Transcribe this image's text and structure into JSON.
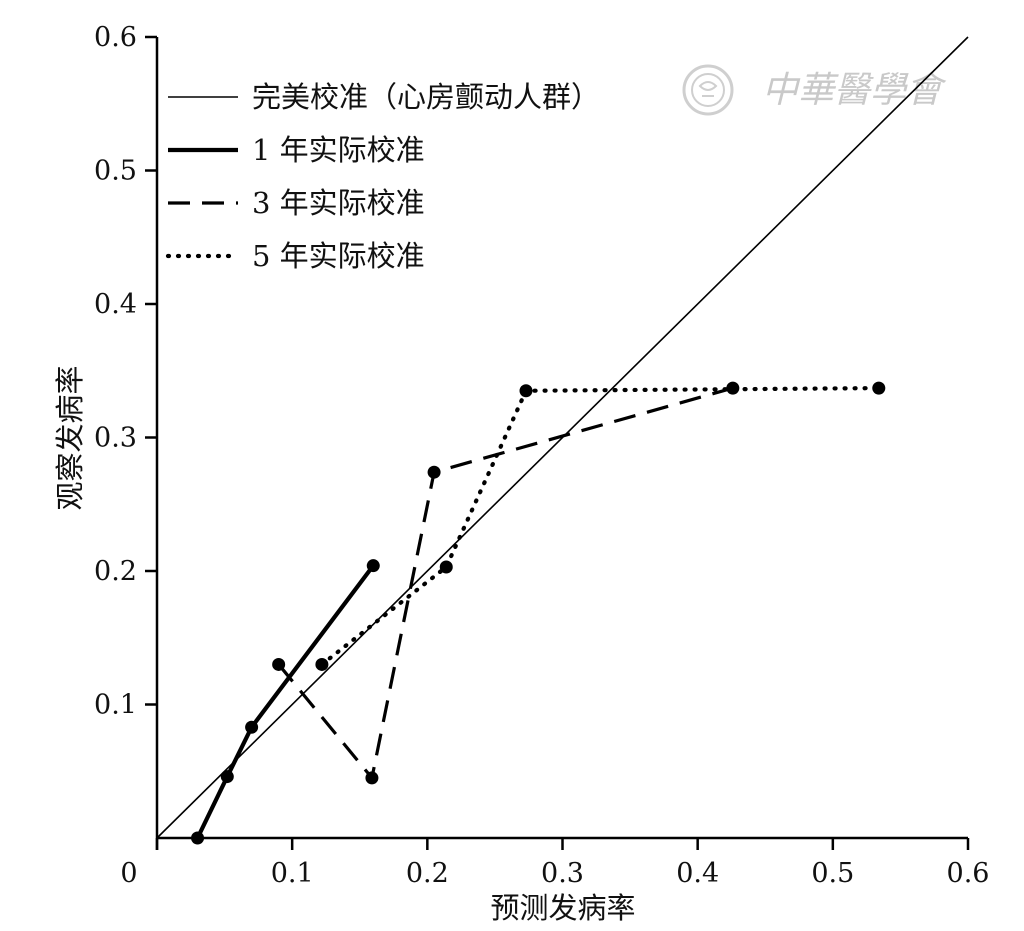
{
  "chart_data": {
    "type": "line",
    "xlabel": "预测发病率",
    "ylabel": "观察发病率",
    "xlim": [
      0,
      0.6
    ],
    "ylim": [
      0,
      0.6
    ],
    "x_ticks": [
      0,
      0.1,
      0.2,
      0.3,
      0.4,
      0.5,
      0.6
    ],
    "y_ticks": [
      0.1,
      0.2,
      0.3,
      0.4,
      0.5,
      0.6
    ],
    "x_tick_labels": [
      "0",
      "0.1",
      "0.2",
      "0.3",
      "0.4",
      "0.5",
      "0.6"
    ],
    "y_tick_labels": [
      "0.1",
      "0.2",
      "0.3",
      "0.4",
      "0.5",
      "0.6"
    ],
    "grid": false,
    "legend_position": "top-left",
    "series": [
      {
        "name": "完美校准（心房颤动人群）",
        "style": "thin",
        "markers": false,
        "x": [
          0,
          0.6
        ],
        "y": [
          0,
          0.6
        ]
      },
      {
        "name": "1 年实际校准",
        "style": "thick",
        "markers": true,
        "x": [
          0.03,
          0.052,
          0.07,
          0.16
        ],
        "y": [
          0.0,
          0.046,
          0.083,
          0.204
        ]
      },
      {
        "name": "3 年实际校准",
        "style": "dashed",
        "markers": true,
        "x": [
          0.09,
          0.159,
          0.205,
          0.426
        ],
        "y": [
          0.13,
          0.045,
          0.274,
          0.337
        ]
      },
      {
        "name": "5 年实际校准",
        "style": "dotted",
        "markers": true,
        "x": [
          0.122,
          0.214,
          0.273,
          0.534
        ],
        "y": [
          0.13,
          0.203,
          0.335,
          0.337
        ]
      }
    ]
  },
  "watermark": {
    "text": "中華醫學會"
  }
}
